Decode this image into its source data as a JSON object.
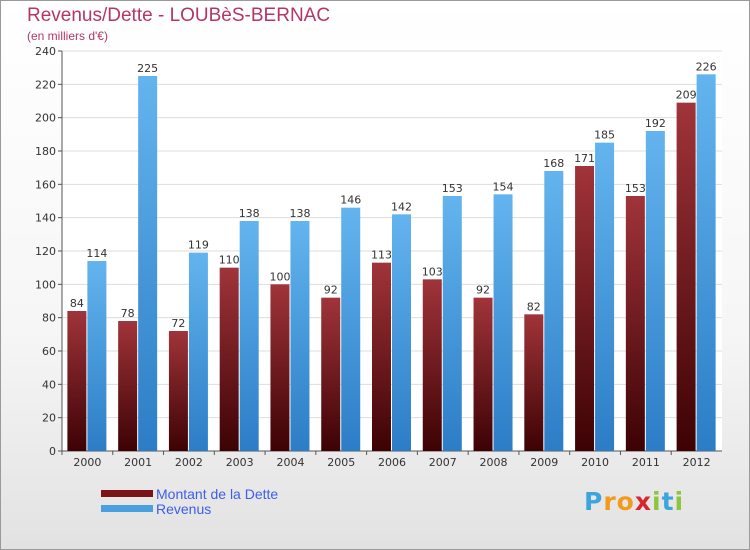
{
  "chart_data": {
    "type": "bar",
    "title": "Revenus/Dette - LOUBèS-BERNAC",
    "subtitle": "(en milliers d'€)",
    "categories": [
      "2000",
      "2001",
      "2002",
      "2003",
      "2004",
      "2005",
      "2006",
      "2007",
      "2008",
      "2009",
      "2010",
      "2011",
      "2012"
    ],
    "series": [
      {
        "name": "Montant de la Dette",
        "values": [
          84,
          78,
          72,
          110,
          100,
          92,
          113,
          103,
          92,
          82,
          171,
          153,
          209
        ],
        "color": "#7a1418"
      },
      {
        "name": "Revenus",
        "values": [
          114,
          225,
          119,
          138,
          138,
          146,
          142,
          153,
          154,
          168,
          185,
          192,
          226
        ],
        "color": "#4a9fe0"
      }
    ],
    "ylim": [
      0,
      240
    ],
    "yticks": [
      0,
      20,
      40,
      60,
      80,
      100,
      120,
      140,
      160,
      180,
      200,
      220,
      240
    ],
    "grid": true,
    "legend_position": "bottom-left"
  },
  "logo": {
    "letters": [
      "P",
      "r",
      "o",
      "x",
      "i",
      "t",
      "i"
    ],
    "colors": [
      "#3ba5dc",
      "#f39a1e",
      "#f39a1e",
      "#d8262e",
      "#8cc63f",
      "#3ba5dc",
      "#8cc63f"
    ]
  }
}
